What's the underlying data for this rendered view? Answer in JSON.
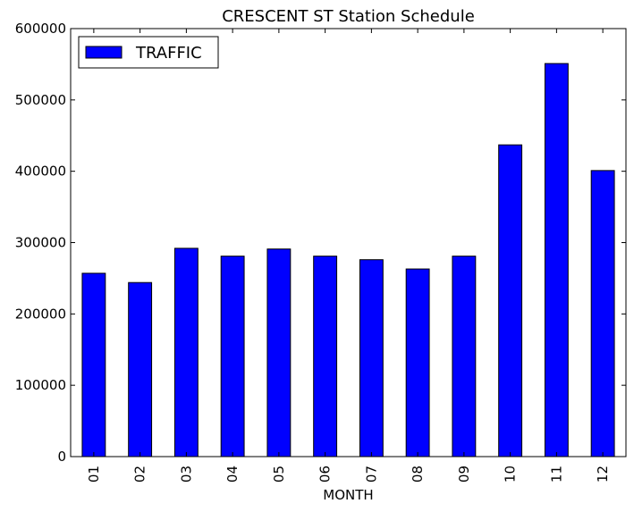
{
  "chart_data": {
    "type": "bar",
    "title": "CRESCENT ST Station Schedule",
    "xlabel": "MONTH",
    "ylabel": "",
    "categories": [
      "01",
      "02",
      "03",
      "04",
      "05",
      "06",
      "07",
      "08",
      "09",
      "10",
      "11",
      "12"
    ],
    "series": [
      {
        "name": "TRAFFIC",
        "color": "#0000ff",
        "values": [
          257000,
          244000,
          292000,
          281000,
          291000,
          281000,
          276000,
          263000,
          281000,
          437000,
          551000,
          401000
        ]
      }
    ],
    "ylim": [
      0,
      600000
    ],
    "yticks": [
      "0",
      "100000",
      "200000",
      "300000",
      "400000",
      "500000",
      "600000"
    ],
    "grid": false,
    "legend_position": "top-left"
  }
}
